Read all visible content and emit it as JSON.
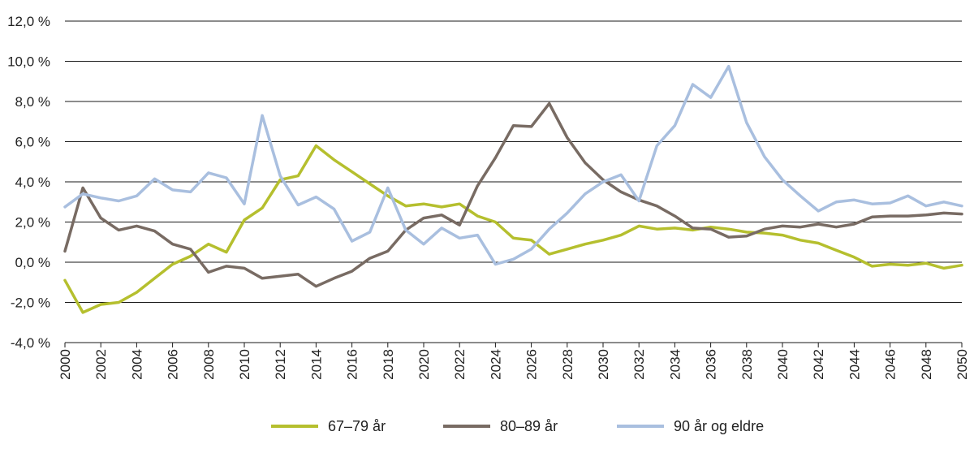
{
  "chart_data": {
    "type": "line",
    "title": "",
    "xlabel": "",
    "ylabel": "",
    "ylim": [
      -4,
      12
    ],
    "y_ticks": [
      -4,
      -2,
      0,
      2,
      4,
      6,
      8,
      10,
      12
    ],
    "y_tick_labels": [
      "-4,0 %",
      "-2,0 %",
      "0,0 %",
      "2,0 %",
      "4,0 %",
      "6,0 %",
      "8,0 %",
      "10,0 %",
      "12,0 %"
    ],
    "x_tick_labels": [
      "2000",
      "2002",
      "2004",
      "2006",
      "2008",
      "2010",
      "2012",
      "2014",
      "2016",
      "2018",
      "2020",
      "2022",
      "2024",
      "2026",
      "2028",
      "2030",
      "2032",
      "2034",
      "2036",
      "2038",
      "2040",
      "2042",
      "2044",
      "2046",
      "2048",
      "2050"
    ],
    "grid": "horizontal",
    "legend_position": "bottom",
    "x": [
      2000,
      2001,
      2002,
      2003,
      2004,
      2005,
      2006,
      2007,
      2008,
      2009,
      2010,
      2011,
      2012,
      2013,
      2014,
      2015,
      2016,
      2017,
      2018,
      2019,
      2020,
      2021,
      2022,
      2023,
      2024,
      2025,
      2026,
      2027,
      2028,
      2029,
      2030,
      2031,
      2032,
      2033,
      2034,
      2035,
      2036,
      2037,
      2038,
      2039,
      2040,
      2041,
      2042,
      2043,
      2044,
      2045,
      2046,
      2047,
      2048,
      2049,
      2050
    ],
    "series": [
      {
        "name": "67–79 år",
        "color": "#b5bf2e",
        "values": [
          -0.9,
          -2.5,
          -2.1,
          -2.0,
          -1.5,
          -0.8,
          -0.1,
          0.3,
          0.9,
          0.5,
          2.1,
          2.7,
          4.1,
          4.3,
          5.8,
          5.1,
          4.5,
          3.9,
          3.3,
          2.8,
          2.9,
          2.75,
          2.9,
          2.3,
          2.0,
          1.2,
          1.1,
          0.4,
          0.65,
          0.9,
          1.1,
          1.35,
          1.8,
          1.65,
          1.7,
          1.6,
          1.75,
          1.65,
          1.5,
          1.45,
          1.35,
          1.1,
          0.95,
          0.6,
          0.25,
          -0.2,
          -0.1,
          -0.15,
          -0.05,
          -0.3,
          -0.15
        ]
      },
      {
        "name": "80–89 år",
        "color": "#786b63",
        "values": [
          0.55,
          3.7,
          2.2,
          1.6,
          1.8,
          1.55,
          0.9,
          0.65,
          -0.5,
          -0.2,
          -0.3,
          -0.8,
          -0.7,
          -0.6,
          -1.2,
          -0.8,
          -0.45,
          0.2,
          0.55,
          1.6,
          2.2,
          2.35,
          1.85,
          3.8,
          5.2,
          6.8,
          6.75,
          7.9,
          6.2,
          4.95,
          4.1,
          3.5,
          3.1,
          2.8,
          2.3,
          1.7,
          1.65,
          1.25,
          1.3,
          1.65,
          1.8,
          1.75,
          1.9,
          1.75,
          1.9,
          2.25,
          2.3,
          2.3,
          2.35,
          2.45,
          2.4
        ]
      },
      {
        "name": "90 år og eldre",
        "color": "#a9bfdf",
        "values": [
          2.75,
          3.4,
          3.2,
          3.05,
          3.3,
          4.15,
          3.6,
          3.5,
          4.45,
          4.2,
          2.9,
          7.3,
          4.3,
          2.85,
          3.25,
          2.65,
          1.05,
          1.5,
          3.7,
          1.6,
          0.9,
          1.7,
          1.2,
          1.35,
          -0.1,
          0.15,
          0.65,
          1.65,
          2.45,
          3.4,
          4.0,
          4.35,
          3.05,
          5.8,
          6.8,
          8.85,
          8.2,
          9.75,
          6.95,
          5.25,
          4.1,
          3.3,
          2.55,
          3.0,
          3.1,
          2.9,
          2.95,
          3.3,
          2.8,
          3.0,
          2.8
        ]
      }
    ]
  }
}
